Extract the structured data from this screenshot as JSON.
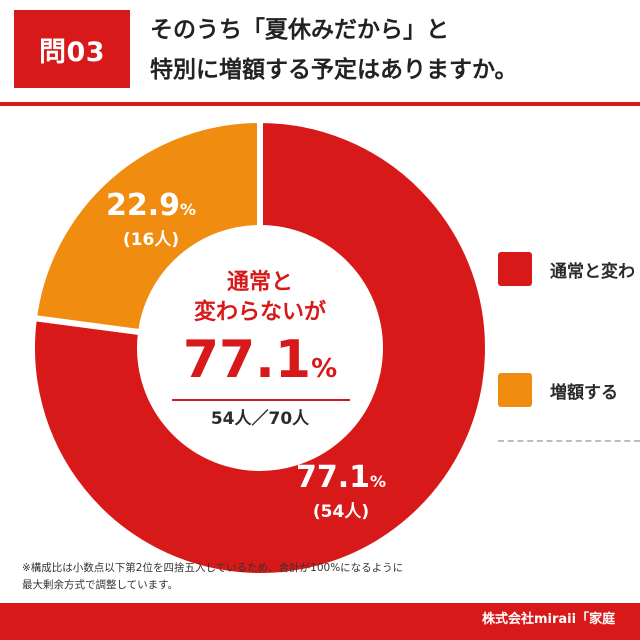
{
  "header": {
    "badge": "問03",
    "question_line1": "そのうち「夏休みだから」と",
    "question_line2": "特別に増額する予定はありますか。"
  },
  "colors": {
    "accent": "#d8191a",
    "series_same": "#d8191a",
    "series_increase": "#f08c0f"
  },
  "chart_data": {
    "type": "pie",
    "title": "",
    "center": {
      "title_line1": "通常と",
      "title_line2": "変わらないが",
      "value": "77.1",
      "value_unit": "%",
      "count": "54人／70人"
    },
    "slices": [
      {
        "label": "通常と変わ",
        "value": 77.1,
        "value_text": "77.1",
        "unit": "%",
        "count": 54,
        "count_text": "(54人)",
        "color": "#d8191a"
      },
      {
        "label": "増額する",
        "value": 22.9,
        "value_text": "22.9",
        "unit": "%",
        "count": 16,
        "count_text": "(16人)",
        "color": "#f08c0f"
      }
    ],
    "total_count": 70
  },
  "legend": [
    {
      "label": "通常と変わ",
      "color": "#d8191a"
    },
    {
      "label": "増額する",
      "color": "#f08c0f"
    }
  ],
  "footnote": {
    "line1": "※構成比は小数点以下第2位を四捨五入しているため、合計が100%になるように",
    "line2": "最大剰余方式で調整しています。"
  },
  "footer": {
    "credit": "株式会社miraii「家庭"
  }
}
